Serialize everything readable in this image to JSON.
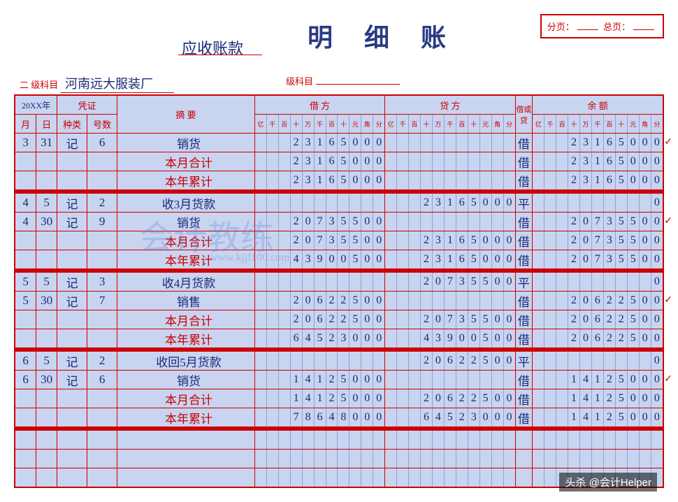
{
  "header": {
    "title": "明 细 账",
    "account_type": "应收账款",
    "page_label": "分页：",
    "total_page_label": "总页：",
    "level2_subject_label": "二 级科目",
    "level2_subject_value": "河南远大服装厂",
    "level3_subject_label": "级科目",
    "year_prefix": "20XX年"
  },
  "columns": {
    "voucher": "凭证",
    "month": "月",
    "day": "日",
    "type": "种类",
    "number": "号数",
    "summary": "摘 要",
    "debit": "借 方",
    "credit": "贷 方",
    "dc": "借或贷",
    "balance": "余 额",
    "units": [
      "亿",
      "千",
      "百",
      "十",
      "万",
      "千",
      "百",
      "十",
      "元",
      "角",
      "分"
    ]
  },
  "watermark": {
    "text": "会计教练",
    "url": "www.kjjl100.com"
  },
  "footer": "头杀 @会计Helper",
  "rows": [
    {
      "m": "3",
      "d": "31",
      "type": "记",
      "num": "6",
      "summary": "销货",
      "sred": false,
      "debit": "   23165000",
      "credit": "",
      "dc": "借",
      "bal": "   23165000",
      "check": true
    },
    {
      "m": "",
      "d": "",
      "type": "",
      "num": "",
      "summary": "本月合计",
      "sred": true,
      "debit": "   23165000",
      "credit": "",
      "dc": "借",
      "bal": "   23165000"
    },
    {
      "m": "",
      "d": "",
      "type": "",
      "num": "",
      "summary": "本年累计",
      "sred": true,
      "debit": "   23165000",
      "credit": "",
      "dc": "借",
      "bal": "   23165000"
    },
    {
      "sep": true
    },
    {
      "m": "4",
      "d": "5",
      "type": "记",
      "num": "2",
      "summary": "收3月货款",
      "sred": false,
      "debit": "",
      "credit": "   23165000",
      "dc": "平",
      "bal": "          0"
    },
    {
      "m": "4",
      "d": "30",
      "type": "记",
      "num": "9",
      "summary": "销货",
      "sred": false,
      "debit": "   20735500",
      "credit": "",
      "dc": "借",
      "bal": "   20735500",
      "check": true
    },
    {
      "m": "",
      "d": "",
      "type": "",
      "num": "",
      "summary": "本月合计",
      "sred": true,
      "debit": "   20735500",
      "credit": "   23165000",
      "dc": "借",
      "bal": "   20735500"
    },
    {
      "m": "",
      "d": "",
      "type": "",
      "num": "",
      "summary": "本年累计",
      "sred": true,
      "debit": "   43900500",
      "credit": "   23165000",
      "dc": "借",
      "bal": "   20735500"
    },
    {
      "sep": true
    },
    {
      "m": "5",
      "d": "5",
      "type": "记",
      "num": "3",
      "summary": "收4月货款",
      "sred": false,
      "debit": "",
      "credit": "   20735500",
      "dc": "平",
      "bal": "          0"
    },
    {
      "m": "5",
      "d": "30",
      "type": "记",
      "num": "7",
      "summary": "销售",
      "sred": false,
      "debit": "   20622500",
      "credit": "",
      "dc": "借",
      "bal": "   20622500",
      "check": true
    },
    {
      "m": "",
      "d": "",
      "type": "",
      "num": "",
      "summary": "本月合计",
      "sred": true,
      "debit": "   20622500",
      "credit": "   20735500",
      "dc": "借",
      "bal": "   20622500"
    },
    {
      "m": "",
      "d": "",
      "type": "",
      "num": "",
      "summary": "本年累计",
      "sred": true,
      "debit": "   64523000",
      "credit": "   43900500",
      "dc": "借",
      "bal": "   20622500"
    },
    {
      "sep": true
    },
    {
      "m": "6",
      "d": "5",
      "type": "记",
      "num": "2",
      "summary": "收回5月货款",
      "sred": false,
      "debit": "",
      "credit": "   20622500",
      "dc": "平",
      "bal": "          0"
    },
    {
      "m": "6",
      "d": "30",
      "type": "记",
      "num": "6",
      "summary": "销货",
      "sred": false,
      "debit": "   14125000",
      "credit": "",
      "dc": "借",
      "bal": "   14125000",
      "check": true
    },
    {
      "m": "",
      "d": "",
      "type": "",
      "num": "",
      "summary": "本月合计",
      "sred": true,
      "debit": "   14125000",
      "credit": "   20622500",
      "dc": "借",
      "bal": "   14125000"
    },
    {
      "m": "",
      "d": "",
      "type": "",
      "num": "",
      "summary": "本年累计",
      "sred": true,
      "debit": "   78648000",
      "credit": "   64523000",
      "dc": "借",
      "bal": "   14125000"
    },
    {
      "sep": true
    },
    {
      "blank": true
    },
    {
      "blank": true
    },
    {
      "blank": true
    }
  ]
}
